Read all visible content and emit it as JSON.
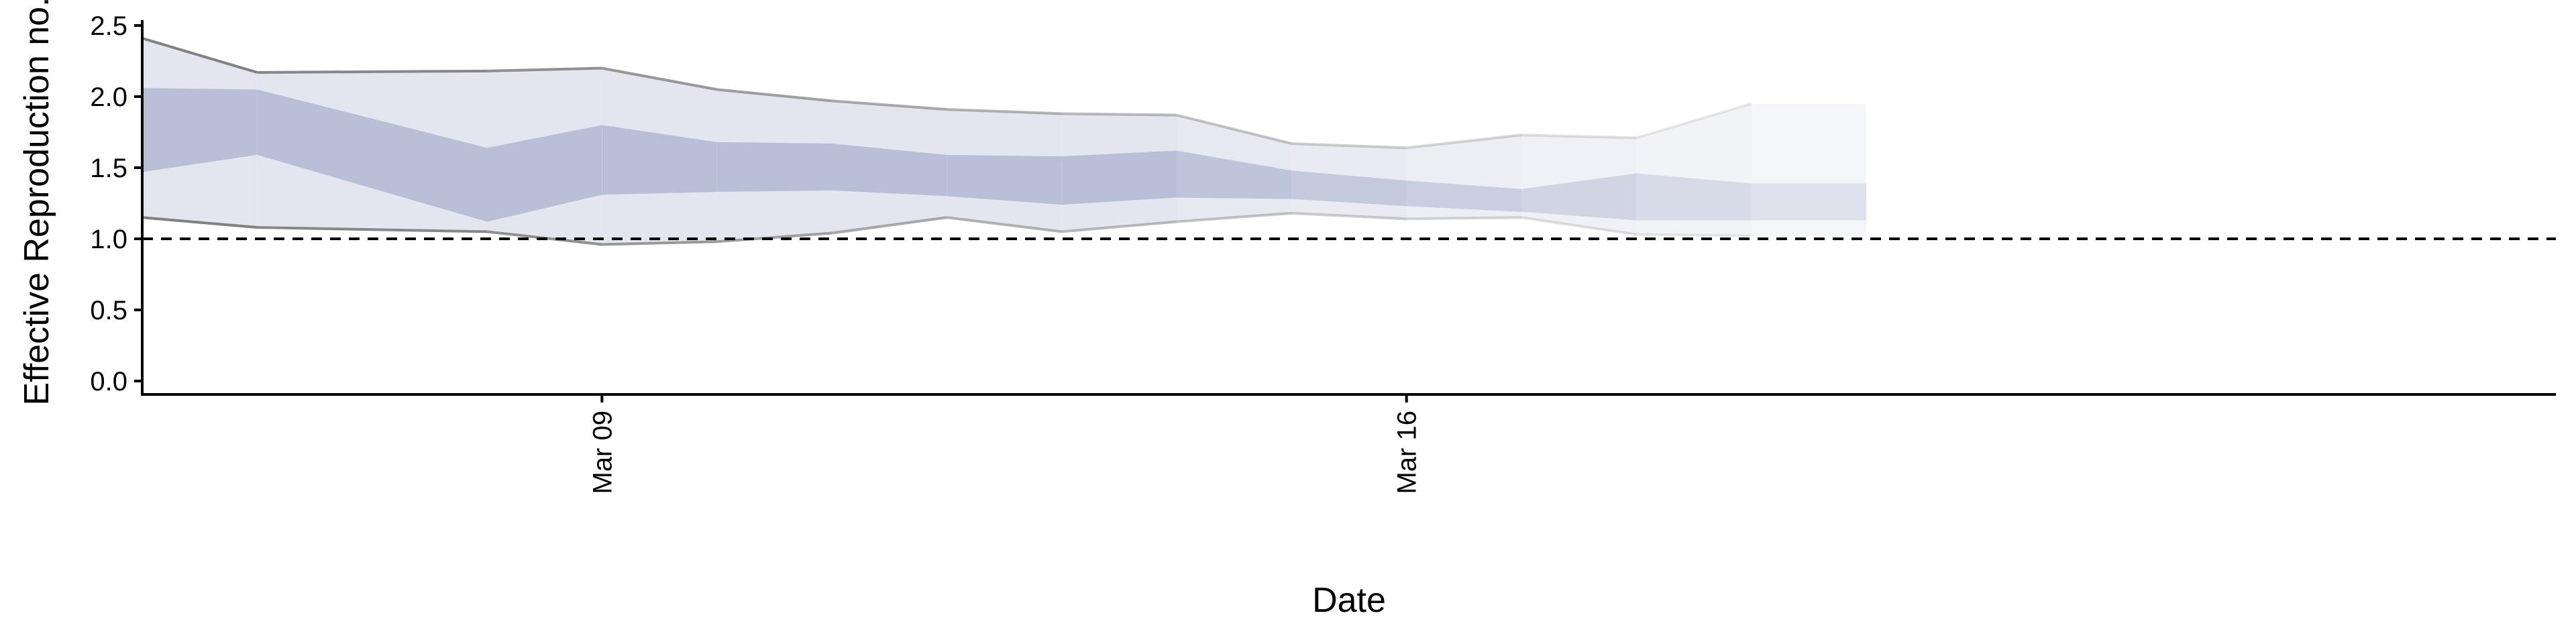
{
  "chart_data": {
    "type": "area",
    "title": "",
    "xlabel": "Date",
    "ylabel": "Effective Reproduction no.",
    "x_tick_labels": [
      "Mar 09",
      "Mar 16"
    ],
    "x_tick_dates": [
      "2020-03-09",
      "2020-03-16"
    ],
    "y_ticks": [
      0.0,
      0.5,
      1.0,
      1.5,
      2.0,
      2.5
    ],
    "y_tick_labels": [
      "0.0",
      "0.5",
      "1.0",
      "1.5",
      "2.0",
      "2.5"
    ],
    "ylim": [
      0,
      2.5
    ],
    "xlim": [
      "2020-03-05",
      "2020-03-26"
    ],
    "reference_line": {
      "y": 1.0,
      "style": "dashed"
    },
    "dates": [
      "2020-03-06",
      "2020-03-08",
      "2020-03-10",
      "2020-03-12",
      "2020-03-14",
      "2020-03-16",
      "2020-03-18",
      "2020-03-20"
    ],
    "series": [
      {
        "upper_95": [
          2.41,
          2.17,
          2.18,
          2.2,
          2.05,
          1.97,
          1.91,
          1.88,
          1.87,
          1.67,
          1.64,
          1.73,
          1.71,
          1.95
        ],
        "upper_50": [
          2.06,
          2.05,
          1.64,
          1.8,
          1.68,
          1.67,
          1.59,
          1.58,
          1.62,
          1.48,
          1.41,
          1.35,
          1.46,
          1.39
        ],
        "lower_50": [
          1.47,
          1.59,
          1.12,
          1.31,
          1.33,
          1.34,
          1.3,
          1.24,
          1.29,
          1.28,
          1.23,
          1.19,
          1.13,
          1.13
        ],
        "lower_95": [
          1.15,
          1.08,
          1.05,
          0.96,
          0.98,
          1.04,
          1.15,
          1.05,
          1.12,
          1.18,
          1.14,
          1.15,
          1.03,
          1.02
        ],
        "dates": [
          "2020-03-05",
          "2020-03-06",
          "2020-03-08",
          "2020-03-09",
          "2020-03-10",
          "2020-03-11",
          "2020-03-12",
          "2020-03-13",
          "2020-03-14",
          "2020-03-15",
          "2020-03-16",
          "2020-03-17",
          "2020-03-18",
          "2020-03-19"
        ]
      }
    ],
    "colors": {
      "band_50": "#b9bfd6",
      "band_95": "#e4e6ef",
      "bound_line": "#7a7a7a",
      "axis": "#000000"
    },
    "grid": false,
    "legend": "none"
  }
}
